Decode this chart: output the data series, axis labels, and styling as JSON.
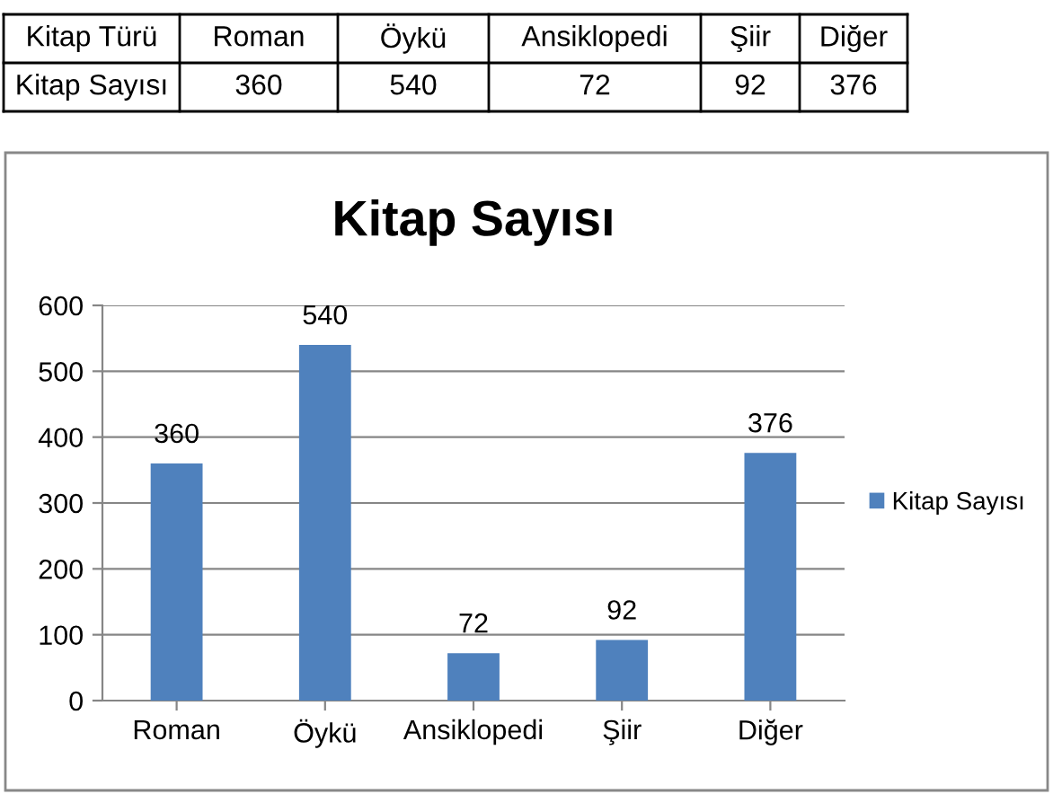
{
  "chart_data": [
    {
      "type": "other",
      "annotations": [
        "Kitap Türü"
      ],
      "categories": [
        "Roman",
        "Öykü",
        "Ansiklopedi",
        "Şiir",
        "Diğer"
      ],
      "series": [
        {
          "name": "Kitap Sayısı",
          "values": [
            360,
            540,
            72,
            92,
            376
          ],
          "value_labels": [
            "360",
            "540",
            "72",
            "92",
            "376"
          ]
        }
      ]
    },
    {
      "type": "bar",
      "title": "Kitap Sayısı",
      "categories": [
        "Roman",
        "Öykü",
        "Ansiklopedi",
        "Şiir",
        "Diğer"
      ],
      "series": [
        {
          "name": "Kitap Sayısı",
          "color": "#4f81bd",
          "values": [
            360,
            540,
            72,
            92,
            376
          ]
        }
      ],
      "ylim": [
        0,
        600
      ],
      "yticks": [
        0,
        100,
        200,
        300,
        400,
        500,
        600
      ],
      "grid": "y",
      "legend": "right",
      "data_labels": true
    }
  ]
}
